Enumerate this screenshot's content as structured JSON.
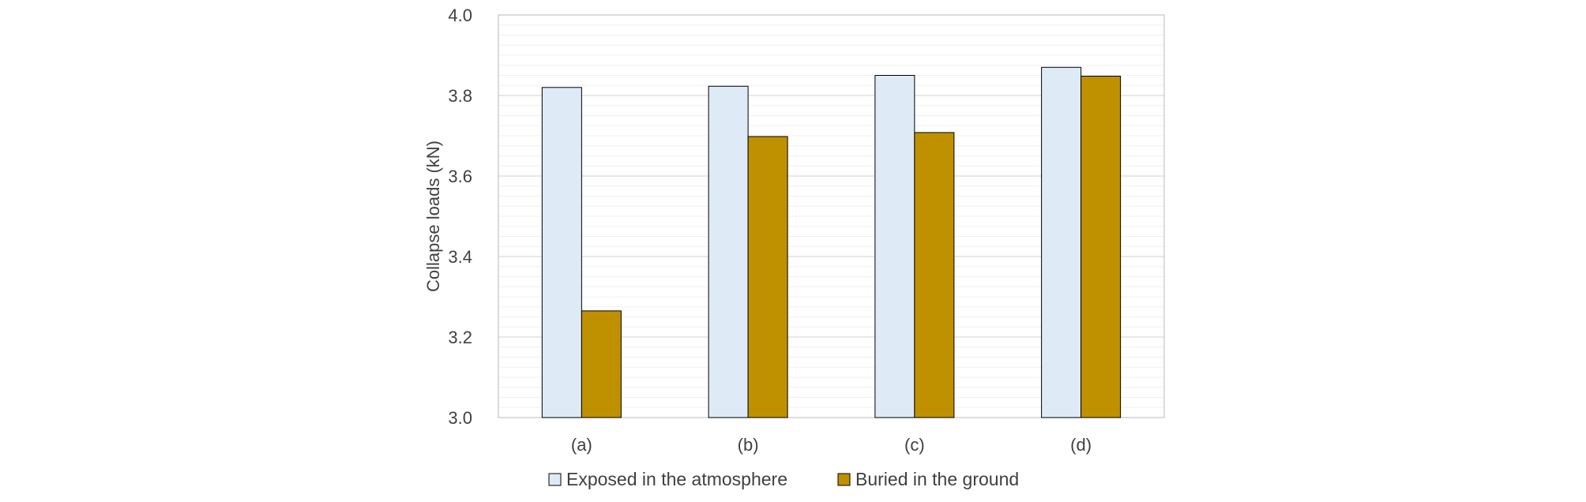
{
  "chart_data": {
    "type": "bar",
    "categories": [
      "(a)",
      "(b)",
      "(c)",
      "(d)"
    ],
    "series": [
      {
        "name": "Exposed in the atmosphere",
        "values": [
          3.82,
          3.823,
          3.85,
          3.87
        ],
        "color": "#DEEBF7"
      },
      {
        "name": "Buried in the ground",
        "values": [
          3.265,
          3.698,
          3.708,
          3.848
        ],
        "color": "#BF9000"
      }
    ],
    "ylabel": "Collapse loads (kN)",
    "xlabel": "",
    "ylim": [
      3.0,
      4.0
    ],
    "yticks": [
      "3.0",
      "3.2",
      "3.4",
      "3.6",
      "3.8",
      "4.0"
    ],
    "grid": true,
    "legend": "bottom"
  }
}
